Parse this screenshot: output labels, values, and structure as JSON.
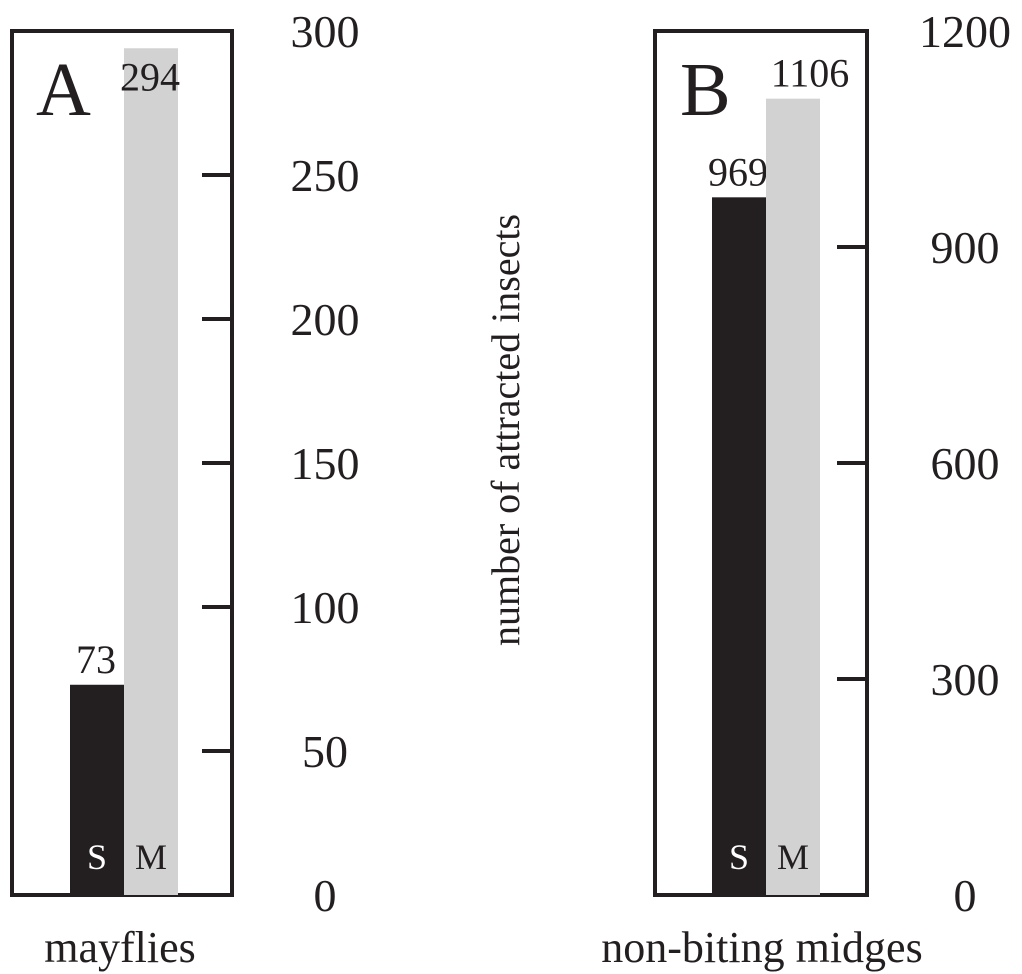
{
  "colors": {
    "S": "#231f20",
    "M": "#d2d2d2",
    "S_text": "#ffffff",
    "M_text": "#231f20"
  },
  "chart_data": [
    {
      "type": "bar",
      "panel": "A",
      "categories": [
        "S",
        "M"
      ],
      "values": [
        73,
        294
      ],
      "value_labels": [
        "73",
        "294"
      ],
      "xlabel": "mayflies",
      "ylim": [
        0,
        300
      ],
      "yticks": [
        0,
        50,
        100,
        150,
        200,
        250,
        300
      ],
      "ytick_labels": [
        "0",
        "50",
        "100",
        "150",
        "200",
        "250",
        "300"
      ],
      "y_axis_side": "right"
    },
    {
      "type": "bar",
      "panel": "B",
      "categories": [
        "S",
        "M"
      ],
      "values": [
        969,
        1106
      ],
      "value_labels": [
        "969",
        "1106"
      ],
      "xlabel": "non-biting midges",
      "ylim": [
        0,
        1200
      ],
      "yticks": [
        0,
        300,
        600,
        900,
        1200
      ],
      "ytick_labels": [
        "0",
        "300",
        "600",
        "900",
        "1200"
      ],
      "y_axis_side": "right"
    }
  ],
  "ylabel": "number of attracted insects"
}
